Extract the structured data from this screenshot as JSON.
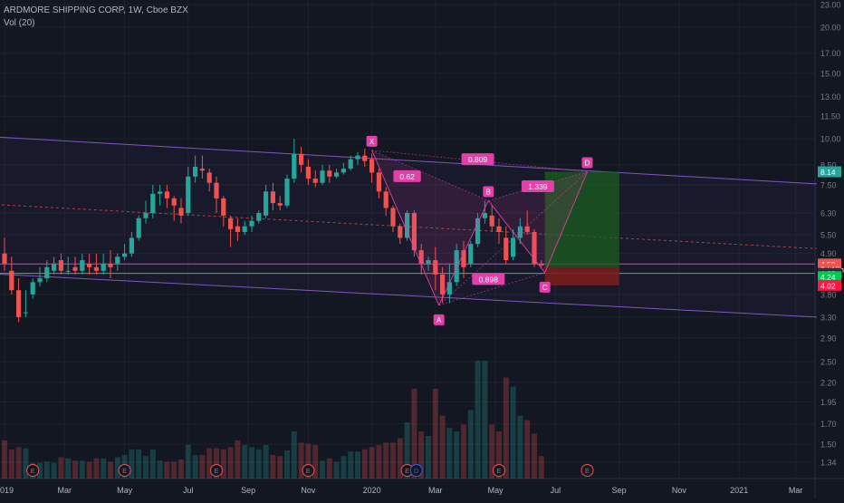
{
  "header": {
    "symbol_line": "ARDMORE SHIPPING CORP, 1W, Cboe BZX",
    "indicator": "Vol (20)"
  },
  "colors": {
    "background": "#131722",
    "up": "#26a69a",
    "down": "#ef5350",
    "pattern": "#e040a8",
    "channel": "#7e57c2",
    "support": "#4caf50",
    "target_zone": "#1b5e20",
    "stop_zone": "#7f1d1d"
  },
  "chart_data": {
    "type": "candlestick",
    "scale": "log",
    "ylim": [
      1.34,
      23.0
    ],
    "y_ticks": [
      1.34,
      1.5,
      1.7,
      1.95,
      2.2,
      2.5,
      2.9,
      3.3,
      3.8,
      4.33,
      4.9,
      5.5,
      6.3,
      7.5,
      8.5,
      10.0,
      11.5,
      13.0,
      15.0,
      17.0,
      20.0,
      23.0
    ],
    "x_labels": [
      "2019",
      "Mar",
      "May",
      "Jul",
      "Sep",
      "Nov",
      "2020",
      "Mar",
      "May",
      "Jul",
      "Sep",
      "Nov",
      "2021",
      "Mar"
    ],
    "x_label_weeks": [
      0,
      8.5,
      17,
      26,
      34.5,
      43,
      52,
      61,
      69.5,
      78,
      87,
      95.5,
      104,
      112
    ],
    "candles": [
      [
        4.9,
        5.4,
        4.6,
        4.4
      ],
      [
        4.4,
        4.8,
        3.9,
        3.8
      ],
      [
        3.9,
        4.2,
        3.3,
        3.2
      ],
      [
        3.4,
        3.9,
        3.4,
        3.3
      ],
      [
        3.8,
        4.2,
        4.1,
        3.7
      ],
      [
        4.1,
        4.5,
        4.2,
        4.0
      ],
      [
        4.2,
        4.7,
        4.5,
        4.1
      ],
      [
        4.4,
        4.8,
        4.6,
        4.3
      ],
      [
        4.7,
        4.9,
        4.4,
        4.3
      ],
      [
        4.4,
        4.8,
        4.4,
        4.3
      ],
      [
        4.5,
        4.8,
        4.4,
        4.3
      ],
      [
        4.4,
        4.9,
        4.7,
        4.3
      ],
      [
        4.6,
        4.9,
        4.5,
        4.3
      ],
      [
        4.5,
        4.9,
        4.4,
        4.3
      ],
      [
        4.4,
        4.9,
        4.6,
        4.3
      ],
      [
        4.6,
        5.0,
        4.5,
        4.2
      ],
      [
        4.6,
        4.9,
        4.8,
        4.4
      ],
      [
        4.8,
        5.2,
        4.9,
        4.7
      ],
      [
        4.9,
        5.6,
        5.4,
        4.8
      ],
      [
        5.4,
        6.2,
        6.1,
        5.3
      ],
      [
        6.1,
        6.8,
        6.3,
        5.9
      ],
      [
        6.3,
        7.5,
        7.1,
        6.1
      ],
      [
        7.1,
        7.5,
        7.2,
        6.6
      ],
      [
        7.2,
        7.5,
        6.9,
        6.5
      ],
      [
        6.9,
        7.0,
        6.6,
        6.0
      ],
      [
        6.5,
        6.9,
        6.2,
        5.9
      ],
      [
        6.3,
        8.4,
        7.9,
        6.2
      ],
      [
        7.9,
        9.0,
        8.4,
        7.6
      ],
      [
        8.3,
        9.0,
        8.2,
        7.8
      ],
      [
        8.1,
        8.3,
        7.6,
        7.2
      ],
      [
        7.6,
        7.9,
        6.9,
        6.3
      ],
      [
        6.9,
        7.0,
        6.2,
        5.8
      ],
      [
        6.1,
        6.2,
        5.7,
        5.1
      ],
      [
        5.8,
        6.1,
        5.6,
        5.3
      ],
      [
        5.6,
        6.0,
        5.8,
        5.5
      ],
      [
        5.8,
        6.2,
        6.0,
        5.6
      ],
      [
        6.0,
        6.4,
        6.3,
        5.9
      ],
      [
        6.2,
        7.5,
        7.2,
        6.1
      ],
      [
        7.2,
        7.6,
        6.7,
        6.4
      ],
      [
        6.7,
        7.0,
        6.6,
        6.4
      ],
      [
        6.6,
        8.0,
        7.8,
        6.5
      ],
      [
        7.8,
        10.0,
        9.1,
        7.6
      ],
      [
        9.1,
        9.5,
        8.5,
        8.1
      ],
      [
        8.4,
        8.8,
        7.8,
        7.5
      ],
      [
        7.8,
        8.2,
        7.6,
        7.4
      ],
      [
        7.6,
        8.5,
        8.2,
        7.5
      ],
      [
        8.2,
        8.5,
        7.9,
        7.6
      ],
      [
        7.9,
        8.3,
        8.1,
        7.8
      ],
      [
        8.1,
        8.6,
        8.3,
        8.0
      ],
      [
        8.3,
        9.0,
        8.8,
        8.2
      ],
      [
        8.8,
        9.2,
        9.0,
        8.5
      ],
      [
        9.0,
        9.4,
        8.7,
        8.4
      ],
      [
        8.8,
        9.1,
        8.1,
        7.6
      ],
      [
        8.1,
        8.3,
        7.2,
        6.9
      ],
      [
        7.2,
        7.4,
        6.5,
        6.2
      ],
      [
        6.5,
        6.6,
        5.8,
        5.6
      ],
      [
        5.8,
        5.9,
        5.4,
        5.2
      ],
      [
        5.4,
        6.4,
        6.3,
        5.3
      ],
      [
        6.3,
        6.4,
        5.0,
        4.8
      ],
      [
        5.0,
        5.2,
        4.6,
        4.3
      ],
      [
        4.6,
        4.8,
        4.7,
        4.4
      ],
      [
        4.7,
        5.1,
        4.3,
        3.9
      ],
      [
        4.3,
        4.5,
        3.8,
        3.6
      ],
      [
        3.8,
        4.6,
        4.1,
        3.6
      ],
      [
        4.1,
        5.2,
        5.0,
        4.0
      ],
      [
        5.0,
        5.3,
        4.5,
        4.2
      ],
      [
        4.6,
        5.3,
        5.2,
        4.5
      ],
      [
        5.2,
        6.3,
        6.1,
        5.1
      ],
      [
        6.1,
        6.8,
        6.3,
        5.9
      ],
      [
        6.2,
        6.6,
        5.8,
        5.6
      ],
      [
        5.8,
        6.1,
        5.6,
        5.2
      ],
      [
        5.4,
        5.8,
        4.7,
        4.6
      ],
      [
        4.8,
        5.7,
        5.4,
        4.7
      ],
      [
        5.4,
        6.1,
        5.8,
        5.2
      ],
      [
        5.8,
        6.4,
        5.6,
        5.5
      ],
      [
        5.6,
        5.7,
        4.6,
        4.5
      ],
      [
        4.6,
        4.7,
        4.55,
        4.5
      ]
    ],
    "volume": [
      3.4,
      2.6,
      2.8,
      2.7,
      1.4,
      1.4,
      1.5,
      1.4,
      1.9,
      1.8,
      1.6,
      1.6,
      1.5,
      1.8,
      1.8,
      1.5,
      1.9,
      2.1,
      2.6,
      2.6,
      2.0,
      2.6,
      1.6,
      1.5,
      1.5,
      1.7,
      3.0,
      2.1,
      2.1,
      2.7,
      2.7,
      2.6,
      2.8,
      3.4,
      3.0,
      2.8,
      2.6,
      3.0,
      2.1,
      2.0,
      2.5,
      4.2,
      3.2,
      3.1,
      3.0,
      1.6,
      1.8,
      1.5,
      2.0,
      2.4,
      2.4,
      2.6,
      2.8,
      3.0,
      3.2,
      3.2,
      3.6,
      5.0,
      8.0,
      4.2,
      3.8,
      8.0,
      5.6,
      4.5,
      4.2,
      4.8,
      6.1,
      10.5,
      10.5,
      4.8,
      4.2,
      9.0,
      8.2,
      5.6,
      5.2,
      4.0,
      2.0
    ],
    "pattern_points": [
      {
        "label": "X",
        "week": 52,
        "price": 9.3
      },
      {
        "label": "A",
        "week": 61.5,
        "price": 3.55
      },
      {
        "label": "B",
        "week": 68.5,
        "price": 6.8
      },
      {
        "label": "C",
        "week": 76.5,
        "price": 4.35
      },
      {
        "label": "D",
        "week": 82.5,
        "price": 8.14
      }
    ],
    "ratios": [
      {
        "text": "0.62",
        "week": 57,
        "price": 7.9
      },
      {
        "text": "0.809",
        "week": 67,
        "price": 8.78
      },
      {
        "text": "1.339",
        "week": 75.5,
        "price": 7.42
      },
      {
        "text": "0.898",
        "week": 68.5,
        "price": 4.17
      }
    ],
    "price_tags": [
      {
        "text": "8.14",
        "price": 8.14,
        "color": "#26a69a"
      },
      {
        "text": "4.59",
        "price": 4.59,
        "color": "#ef5350"
      },
      {
        "text": "3d 18h",
        "price": 4.45,
        "color": "#ef5350"
      },
      {
        "text": "4.33",
        "price": 4.33,
        "color": "#2a2e39"
      },
      {
        "text": "4.24",
        "price": 4.24,
        "color": "#00c853"
      },
      {
        "text": "4.02",
        "price": 4.02,
        "color": "#ff1744"
      }
    ],
    "horizontal_lines": [
      {
        "price": 4.59,
        "color": "#e040a8"
      },
      {
        "price": 4.33,
        "color": "#4caf50"
      }
    ],
    "channel_upper": [
      {
        "week": -5,
        "price": 10.2
      },
      {
        "week": 115,
        "price": 7.55
      }
    ],
    "channel_lower": [
      {
        "week": -5,
        "price": 4.35
      },
      {
        "week": 115,
        "price": 3.3
      }
    ],
    "channel_mid": [
      {
        "week": -5,
        "price": 6.7
      },
      {
        "week": 115,
        "price": 5.05
      }
    ],
    "target_zone": {
      "from_week": 76.5,
      "to_week": 87,
      "top": 8.14,
      "bottom": 4.5
    },
    "stop_zone": {
      "from_week": 76.5,
      "to_week": 87,
      "top": 4.5,
      "bottom": 4.02
    },
    "events": [
      {
        "label": "E",
        "week": 4
      },
      {
        "label": "E",
        "week": 17
      },
      {
        "label": "E",
        "week": 30
      },
      {
        "label": "E",
        "week": 43
      },
      {
        "label": "E",
        "week": 57
      },
      {
        "label": "D",
        "week": 58.3
      },
      {
        "label": "E",
        "week": 70
      },
      {
        "label": "E",
        "week": 82.5
      }
    ]
  }
}
